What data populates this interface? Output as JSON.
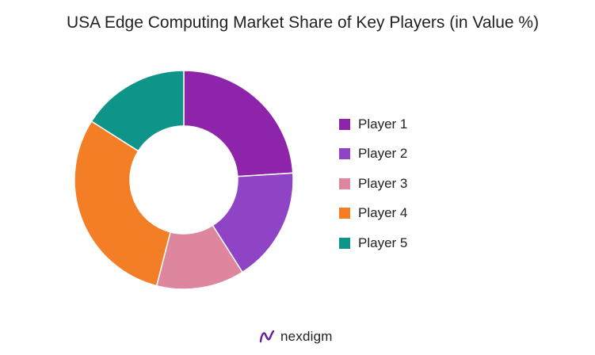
{
  "chart_data": {
    "type": "pie",
    "style": "donut",
    "title": "USA Edge Computing Market Share of Key Players (in Value %)",
    "categories": [
      "Player 1",
      "Player 2",
      "Player 3",
      "Player 4",
      "Player 5"
    ],
    "values": [
      24,
      17,
      13,
      30,
      16
    ],
    "colors": [
      "#8E24AA",
      "#8E44C4",
      "#DE869E",
      "#F47E25",
      "#0E9488"
    ],
    "legend_placement": "right",
    "start_angle": "12 o'clock",
    "direction": "clockwise"
  },
  "branding": {
    "logo_text": "nexdigm"
  }
}
